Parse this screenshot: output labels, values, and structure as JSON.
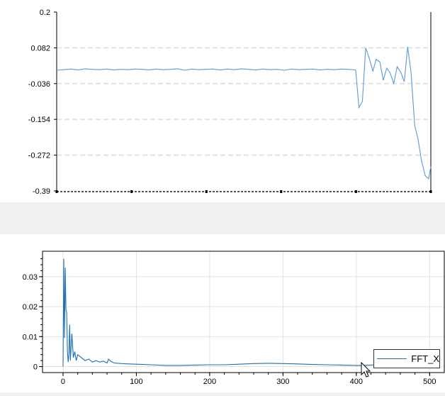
{
  "colors": {
    "series_top": "#5b9bd5",
    "series_bottom": "#1f6fb0",
    "grid": "#e2e2e2",
    "axis": "#000000"
  },
  "chart_data": [
    {
      "type": "line",
      "title": "",
      "xlabel": "",
      "ylabel": "",
      "ylim": [
        -0.39,
        0.2
      ],
      "xlim": [
        0,
        100
      ],
      "yticks": [
        "0.2",
        "0.082",
        "-0.036",
        "-0.154",
        "-0.272",
        "-0.39"
      ],
      "ytick_values": [
        0.2,
        0.082,
        -0.036,
        -0.154,
        -0.272,
        -0.39
      ],
      "xtick_labels_visible": false,
      "grid": "horizontal dashed",
      "legend": "none",
      "series": [
        {
          "x": [
            0,
            1.9,
            3.8,
            5.7,
            7.6,
            9.5,
            11.4,
            13.3,
            15.2,
            17.1,
            19,
            20.9,
            22.8,
            24.7,
            26.6,
            28.5,
            30.4,
            32.3,
            34.2,
            36.1,
            38,
            39.9,
            41.8,
            43.7,
            45.6,
            47.5,
            49.4,
            51.3,
            53.2,
            55.1,
            57,
            58.9,
            60.8,
            62.7,
            64.7,
            66.6,
            68.5,
            70.4,
            72.3,
            74.2,
            76.1,
            78,
            79.9,
            80.8,
            81.7,
            82.6,
            83.6,
            84.5,
            85.4,
            86.4,
            87.3,
            88.2,
            89.1,
            90.1,
            91,
            92,
            92.9,
            93.8,
            94.7,
            95.7,
            96.6,
            97.5,
            98.5,
            99.4,
            100
          ],
          "values": [
            0.008,
            0.01,
            0.012,
            0.009,
            0.013,
            0.011,
            0.01,
            0.012,
            0.009,
            0.011,
            0.01,
            0.012,
            0.011,
            0.009,
            0.012,
            0.01,
            0.011,
            0.013,
            0.008,
            0.012,
            0.01,
            0.011,
            0.012,
            0.009,
            0.012,
            0.01,
            0.013,
            0.011,
            0.009,
            0.012,
            0.01,
            0.011,
            0.008,
            0.012,
            0.01,
            0.011,
            0.012,
            0.009,
            0.011,
            0.01,
            0.012,
            0.011,
            0.009,
            -0.115,
            -0.095,
            0.082,
            0.045,
            0.005,
            0.044,
            0.035,
            -0.025,
            0.015,
            0.0,
            -0.035,
            0.02,
            0.0,
            -0.03,
            0.085,
            0.002,
            -0.175,
            -0.22,
            -0.29,
            -0.34,
            -0.35,
            -0.31
          ]
        }
      ]
    },
    {
      "type": "line",
      "title": "",
      "xlabel": "",
      "ylabel": "",
      "xlim": [
        -28,
        520
      ],
      "ylim": [
        -0.002,
        0.0385
      ],
      "xticks": [
        0,
        100,
        200,
        300,
        400,
        500
      ],
      "yticks": [
        0,
        0.01,
        0.02,
        0.03
      ],
      "ytick_labels": [
        "0",
        "0.01",
        "0.02",
        "0.03"
      ],
      "grid": "both",
      "legend": "bottom-right",
      "series": [
        {
          "name": "FFT_X",
          "x": [
            0,
            1,
            2,
            3,
            4,
            5,
            6,
            7,
            8,
            9,
            10,
            12,
            14,
            16,
            18,
            20,
            25,
            30,
            35,
            40,
            45,
            50,
            55,
            60,
            62,
            65,
            70,
            80,
            90,
            100,
            120,
            140,
            160,
            180,
            200,
            220,
            240,
            260,
            280,
            300,
            320,
            340,
            360,
            380,
            400,
            410,
            420,
            430,
            440,
            450,
            460,
            470,
            480,
            490,
            500,
            510
          ],
          "values": [
            0.0,
            0.036,
            0.0095,
            0.033,
            0.019,
            0.018,
            0.005,
            0.0015,
            0.004,
            0.014,
            0.002,
            0.011,
            0.003,
            0.005,
            0.002,
            0.004,
            0.003,
            0.002,
            0.0025,
            0.0015,
            0.002,
            0.0015,
            0.0018,
            0.0012,
            0.0025,
            0.0018,
            0.0012,
            0.001,
            0.0009,
            0.0008,
            0.0006,
            0.0004,
            0.0004,
            0.0005,
            0.0006,
            0.0006,
            0.0008,
            0.001,
            0.0011,
            0.001,
            0.0009,
            0.0007,
            0.0006,
            0.0005,
            0.0004,
            0.0004,
            0.0005,
            0.0006,
            0.0007,
            0.0006,
            0.0006,
            0.0006,
            0.0006,
            0.0006,
            0.0006,
            0.0006
          ]
        }
      ]
    }
  ]
}
